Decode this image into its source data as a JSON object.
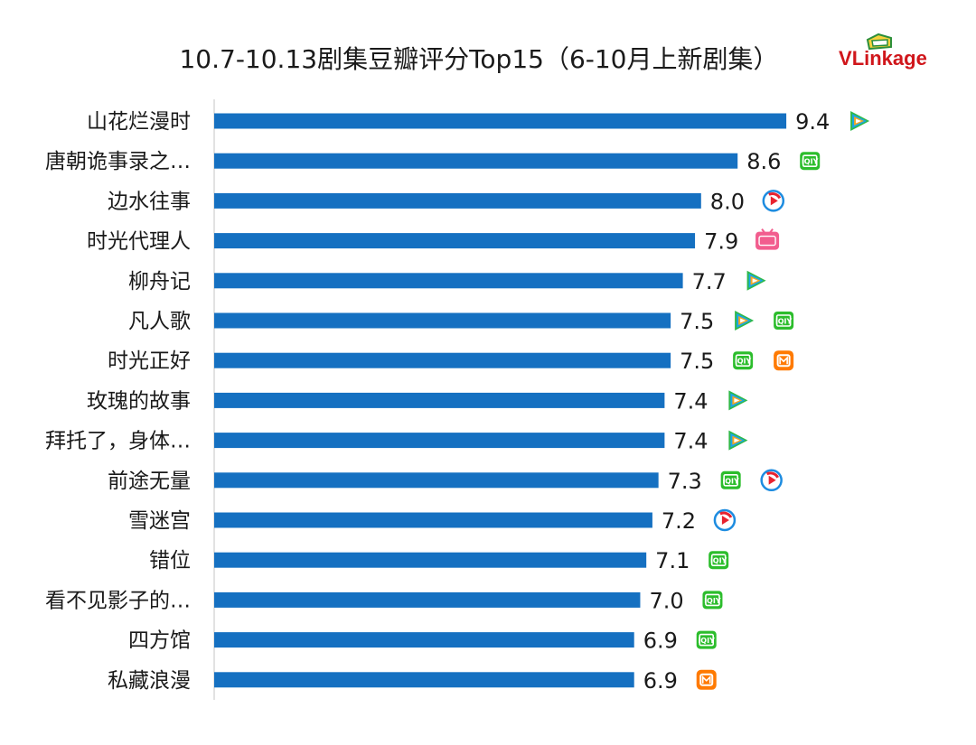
{
  "title": "10.7-10.13剧集豆瓣评分Top15（6-10月上新剧集）",
  "brand": {
    "text_v": "V",
    "text_link": "Link",
    "text_age": "age"
  },
  "colors": {
    "bar": "#1570c1",
    "axis": "#d9d9d9",
    "tencent_green": "#2fb84a",
    "tencent_blue": "#19a6e8",
    "tencent_orange": "#f5a623",
    "iqiyi": "#2cbd2c",
    "youku_red": "#e8232f",
    "youku_blue": "#1d8ce0",
    "bilibili": "#f25d8e",
    "mango": "#ff7a00"
  },
  "chart_data": {
    "type": "bar",
    "orientation": "horizontal",
    "title": "10.7-10.13剧集豆瓣评分Top15（6-10月上新剧集）",
    "xlabel": "",
    "ylabel": "",
    "xlim": [
      0,
      10
    ],
    "grid": false,
    "legend": "none",
    "categories": [
      "山花烂漫时",
      "唐朝诡事录之…",
      "边水往事",
      "时光代理人",
      "柳舟记",
      "凡人歌",
      "时光正好",
      "玫瑰的故事",
      "拜托了，身体…",
      "前途无量",
      "雪迷宫",
      "错位",
      "看不见影子的…",
      "四方馆",
      "私藏浪漫"
    ],
    "values": [
      9.4,
      8.6,
      8.0,
      7.9,
      7.7,
      7.5,
      7.5,
      7.4,
      7.4,
      7.3,
      7.2,
      7.1,
      7.0,
      6.9,
      6.9
    ],
    "value_labels": [
      "9.4",
      "8.6",
      "8.0",
      "7.9",
      "7.7",
      "7.5",
      "7.5",
      "7.4",
      "7.4",
      "7.3",
      "7.2",
      "7.1",
      "7.0",
      "6.9",
      "6.9"
    ],
    "platforms": [
      [
        "tencent-video"
      ],
      [
        "iqiyi"
      ],
      [
        "youku"
      ],
      [
        "bilibili"
      ],
      [
        "tencent-video"
      ],
      [
        "tencent-video",
        "iqiyi"
      ],
      [
        "iqiyi",
        "mango-tv"
      ],
      [
        "tencent-video"
      ],
      [
        "tencent-video"
      ],
      [
        "iqiyi",
        "youku"
      ],
      [
        "youku"
      ],
      [
        "iqiyi"
      ],
      [
        "iqiyi"
      ],
      [
        "iqiyi"
      ],
      [
        "mango-tv"
      ]
    ]
  }
}
